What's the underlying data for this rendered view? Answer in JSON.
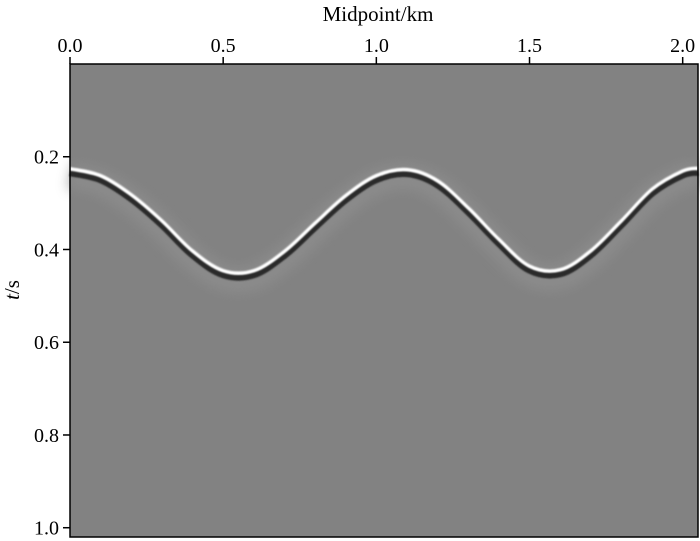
{
  "chart_data": {
    "type": "heatmap",
    "title": "",
    "xlabel": "Midpoint/km",
    "ylabel_italic": "t",
    "ylabel_rest": "/s",
    "xlim": [
      0.0,
      2.05
    ],
    "ylim": [
      0.0,
      1.02
    ],
    "xticks": [
      0.0,
      0.5,
      1.0,
      1.5,
      2.0
    ],
    "xtick_labels": [
      "0.0",
      "0.5",
      "1.0",
      "1.5",
      "2.0"
    ],
    "yticks": [
      0.2,
      0.4,
      0.6,
      0.8,
      1.0
    ],
    "ytick_labels": [
      "0.2",
      "0.4",
      "0.6",
      "0.8",
      "1.0"
    ],
    "background_color": "#828282",
    "event_color": "#ffffff",
    "event_shadow_color": "#2a2a2a",
    "event": {
      "name": "reflection",
      "midpoint_km": [
        0.0,
        0.1,
        0.2,
        0.3,
        0.4,
        0.5,
        0.6,
        0.7,
        0.8,
        0.9,
        1.0,
        1.1,
        1.2,
        1.3,
        1.4,
        1.5,
        1.6,
        1.7,
        1.8,
        1.9,
        2.0,
        2.05
      ],
      "time_s": [
        0.228,
        0.243,
        0.284,
        0.34,
        0.405,
        0.448,
        0.448,
        0.406,
        0.345,
        0.286,
        0.243,
        0.23,
        0.254,
        0.312,
        0.38,
        0.438,
        0.446,
        0.405,
        0.34,
        0.272,
        0.233,
        0.227
      ]
    }
  }
}
